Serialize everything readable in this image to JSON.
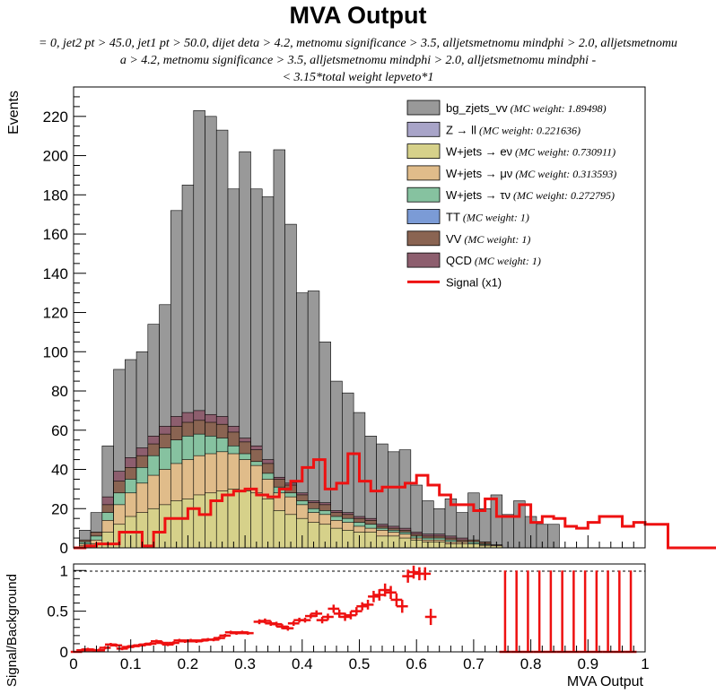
{
  "title": "MVA Output",
  "subtitle_lines": [
    "= 0, jet2 pt > 45.0, jet1 pt > 50.0, dijet deta > 4.2, metnomu significance > 3.5, alljetsmetnomu mindphi > 2.0, alljetsmetnomu",
    "a > 4.2, metnomu significance > 3.5, alljetsmetnomu mindphi > 2.0, alljetsmetnomu mindphi -",
    "< 3.15*total weight lepveto*1"
  ],
  "colors": {
    "bg_zjets_vv": "#999999",
    "z_ll": "#a8a4c8",
    "w_enu": "#d6d18a",
    "w_munu": "#e0bc8a",
    "w_taunu": "#86c2a0",
    "tt": "#7b9bd6",
    "vv": "#8a6452",
    "qcd": "#8d5e6e",
    "signal": "#ee1111"
  },
  "legend": [
    {
      "key": "bg_zjets_vv",
      "label": "bg_zjets_vv",
      "weight": "(MC weight: 1.89498)",
      "kind": "fill"
    },
    {
      "key": "z_ll",
      "label": "Z → ll",
      "weight": "(MC weight: 0.221636)",
      "kind": "fill"
    },
    {
      "key": "w_enu",
      "label": "W+jets → eν",
      "weight": "(MC weight: 0.730911)",
      "kind": "fill"
    },
    {
      "key": "w_munu",
      "label": "W+jets → μν",
      "weight": "(MC weight: 0.313593)",
      "kind": "fill"
    },
    {
      "key": "w_taunu",
      "label": "W+jets → τν",
      "weight": "(MC weight: 0.272795)",
      "kind": "fill"
    },
    {
      "key": "tt",
      "label": "TT",
      "weight": "(MC weight: 1)",
      "kind": "fill"
    },
    {
      "key": "vv",
      "label": "VV",
      "weight": "(MC weight: 1)",
      "kind": "fill"
    },
    {
      "key": "qcd",
      "label": "QCD",
      "weight": "(MC weight: 1)",
      "kind": "fill"
    },
    {
      "key": "signal",
      "label": "Signal (x1)",
      "weight": "",
      "kind": "line"
    }
  ],
  "chart_data": [
    {
      "type": "bar",
      "ylabel": "Events",
      "xlim": [
        0,
        1
      ],
      "ylim": [
        0,
        235
      ],
      "yticks": [
        0,
        20,
        40,
        60,
        80,
        100,
        120,
        140,
        160,
        180,
        200,
        220
      ],
      "bin_edges_start": 0,
      "bin_width": 0.02,
      "stack_totals": {
        "w_enu": [
          1.0,
          2.0,
          8.0,
          12.0,
          16.0,
          18.0,
          20.0,
          22.0,
          24.0,
          25.0,
          27.0,
          28.0,
          29.0,
          30.0,
          29.0,
          28.0,
          25.0,
          19.0,
          17.0,
          15.0,
          13.0,
          12.0,
          10.0,
          9.0,
          8.0,
          8.0,
          6.0,
          6.0,
          5.0,
          4.0,
          3.0,
          3.0,
          2.0,
          2.0,
          2.0,
          1.0,
          1.0
        ],
        "w_munu": [
          2.0,
          4.0,
          14.0,
          22.0,
          28.0,
          33.0,
          37.0,
          40.0,
          43.0,
          45.0,
          47.0,
          48.0,
          49.0,
          48.0,
          45.0,
          42.0,
          35.0,
          28.0,
          26.0,
          22.0,
          18.0,
          17.0,
          14.0,
          13.0,
          11.0,
          10.0,
          9.0,
          8.0,
          7.0,
          5.0,
          4.0,
          4.0,
          3.0,
          3.0,
          2.0,
          1.5,
          1.0
        ],
        "w_taunu": [
          3.0,
          6.0,
          18.0,
          28.0,
          35.0,
          41.0,
          47.0,
          51.0,
          55.0,
          57.0,
          58.0,
          57.0,
          56.0,
          52.0,
          48.0,
          44.0,
          38.0,
          31.0,
          28.0,
          24.0,
          20.0,
          19.0,
          16.0,
          15.0,
          13.0,
          12.0,
          10.0,
          9.0,
          8.0,
          6.0,
          5.0,
          5.0,
          4.0,
          3.0,
          3.0,
          2.0,
          1.0
        ],
        "vv": [
          4.0,
          8.0,
          22.0,
          34.0,
          41.0,
          47.0,
          53.0,
          58.0,
          62.0,
          64.0,
          65.0,
          64.0,
          63.0,
          59.0,
          54.0,
          50.0,
          43.0,
          35.0,
          32.0,
          27.0,
          23.0,
          22.0,
          18.0,
          17.0,
          15.0,
          14.0,
          11.0,
          10.0,
          9.0,
          7.0,
          6.0,
          6.0,
          5.0,
          4.0,
          4.0,
          3.0,
          1.5
        ],
        "qcd": [
          4.0,
          8.0,
          26.0,
          39.0,
          46.0,
          51.0,
          57.0,
          62.0,
          67.0,
          69.0,
          70.0,
          68.0,
          67.0,
          62.0,
          56.0,
          52.0,
          45.0,
          36.0,
          33.0,
          28.0,
          24.0,
          23.0,
          19.0,
          18.0,
          16.0,
          15.0,
          12.0,
          11.0,
          10.0,
          8.0,
          7.0,
          7.0,
          6.0,
          5.0,
          4.0,
          3.0,
          1.5
        ],
        "bg_zjets_vv": [
          9.0,
          18.0,
          52.0,
          91.0,
          96.0,
          100.0,
          114.0,
          124.0,
          172.0,
          185.0,
          223.0,
          220.0,
          213.0,
          183.0,
          202.0,
          183.0,
          179.0,
          203.0,
          165.0,
          130.0,
          131.0,
          105.0,
          85.0,
          79.0,
          69.0,
          57.0,
          53.0,
          49.0,
          50.0,
          32.0,
          24.0,
          20.0,
          25.0,
          18.0,
          28.0,
          20.0,
          27.0,
          17.0,
          24.0,
          16.0,
          12.0,
          12.0
        ]
      }
    },
    {
      "type": "line",
      "series": [
        {
          "name": "Signal (x1)",
          "bin_edges_start": 0,
          "bin_width": 0.02,
          "values": [
            0,
            1,
            2,
            2,
            8,
            8,
            1,
            8,
            15,
            15,
            20,
            17,
            24,
            27,
            29,
            30,
            27,
            26,
            30,
            34,
            41,
            45,
            30,
            33,
            48,
            34,
            29,
            31,
            31,
            33,
            37,
            32,
            27,
            22,
            22,
            19,
            25,
            16,
            16,
            22,
            13,
            16,
            15,
            11,
            10,
            13,
            16,
            16,
            11,
            13,
            12,
            12,
            0,
            0,
            0,
            0,
            0,
            0,
            0,
            0,
            0,
            0,
            0,
            0,
            0,
            0
          ]
        }
      ]
    },
    {
      "type": "scatter",
      "xlabel": "MVA Output",
      "ylabel": "Signal/Background",
      "xlim": [
        0,
        1
      ],
      "ylim": [
        0,
        1.08
      ],
      "xticks": [
        0,
        0.1,
        0.2,
        0.3,
        0.4,
        0.5,
        0.6,
        0.7,
        0.8,
        0.9,
        1
      ],
      "xtick_labels": [
        "0",
        "0.1",
        "0.2",
        "0.3",
        "0.4",
        "0.5",
        "0.6",
        "0.7",
        "0.8",
        "0.9",
        "1"
      ],
      "yticks": [
        0,
        0.5,
        1
      ],
      "ytick_labels": [
        "0",
        "0.5",
        "1"
      ],
      "reference_line": 1,
      "points": [
        {
          "x": 0.005,
          "y": 0.0,
          "err": 0.0
        },
        {
          "x": 0.015,
          "y": 0.02,
          "err": 0.02
        },
        {
          "x": 0.025,
          "y": 0.03,
          "err": 0.02
        },
        {
          "x": 0.035,
          "y": 0.02,
          "err": 0.02
        },
        {
          "x": 0.045,
          "y": 0.02,
          "err": 0.02
        },
        {
          "x": 0.055,
          "y": 0.05,
          "err": 0.02
        },
        {
          "x": 0.065,
          "y": 0.09,
          "err": 0.02
        },
        {
          "x": 0.075,
          "y": 0.08,
          "err": 0.02
        },
        {
          "x": 0.085,
          "y": 0.04,
          "err": 0.02
        },
        {
          "x": 0.095,
          "y": 0.06,
          "err": 0.02
        },
        {
          "x": 0.105,
          "y": 0.07,
          "err": 0.02
        },
        {
          "x": 0.115,
          "y": 0.08,
          "err": 0.02
        },
        {
          "x": 0.125,
          "y": 0.09,
          "err": 0.02
        },
        {
          "x": 0.135,
          "y": 0.1,
          "err": 0.02
        },
        {
          "x": 0.145,
          "y": 0.13,
          "err": 0.02
        },
        {
          "x": 0.155,
          "y": 0.11,
          "err": 0.02
        },
        {
          "x": 0.165,
          "y": 0.09,
          "err": 0.02
        },
        {
          "x": 0.175,
          "y": 0.11,
          "err": 0.02
        },
        {
          "x": 0.185,
          "y": 0.14,
          "err": 0.02
        },
        {
          "x": 0.195,
          "y": 0.13,
          "err": 0.02
        },
        {
          "x": 0.205,
          "y": 0.14,
          "err": 0.02
        },
        {
          "x": 0.215,
          "y": 0.13,
          "err": 0.02
        },
        {
          "x": 0.225,
          "y": 0.14,
          "err": 0.02
        },
        {
          "x": 0.235,
          "y": 0.15,
          "err": 0.02
        },
        {
          "x": 0.245,
          "y": 0.15,
          "err": 0.02
        },
        {
          "x": 0.255,
          "y": 0.17,
          "err": 0.02
        },
        {
          "x": 0.265,
          "y": 0.2,
          "err": 0.02
        },
        {
          "x": 0.275,
          "y": 0.24,
          "err": 0.02
        },
        {
          "x": 0.285,
          "y": 0.23,
          "err": 0.02
        },
        {
          "x": 0.295,
          "y": 0.24,
          "err": 0.02
        },
        {
          "x": 0.305,
          "y": 0.23,
          "err": 0.02
        },
        {
          "x": 0.325,
          "y": 0.37,
          "err": 0.03
        },
        {
          "x": 0.335,
          "y": 0.38,
          "err": 0.03
        },
        {
          "x": 0.345,
          "y": 0.35,
          "err": 0.03
        },
        {
          "x": 0.355,
          "y": 0.34,
          "err": 0.03
        },
        {
          "x": 0.365,
          "y": 0.31,
          "err": 0.03
        },
        {
          "x": 0.375,
          "y": 0.29,
          "err": 0.03
        },
        {
          "x": 0.385,
          "y": 0.35,
          "err": 0.03
        },
        {
          "x": 0.395,
          "y": 0.39,
          "err": 0.03
        },
        {
          "x": 0.405,
          "y": 0.39,
          "err": 0.03
        },
        {
          "x": 0.415,
          "y": 0.44,
          "err": 0.03
        },
        {
          "x": 0.425,
          "y": 0.47,
          "err": 0.04
        },
        {
          "x": 0.435,
          "y": 0.39,
          "err": 0.04
        },
        {
          "x": 0.445,
          "y": 0.43,
          "err": 0.04
        },
        {
          "x": 0.455,
          "y": 0.53,
          "err": 0.05
        },
        {
          "x": 0.465,
          "y": 0.47,
          "err": 0.05
        },
        {
          "x": 0.475,
          "y": 0.43,
          "err": 0.05
        },
        {
          "x": 0.485,
          "y": 0.45,
          "err": 0.05
        },
        {
          "x": 0.495,
          "y": 0.5,
          "err": 0.05
        },
        {
          "x": 0.505,
          "y": 0.56,
          "err": 0.05
        },
        {
          "x": 0.515,
          "y": 0.58,
          "err": 0.06
        },
        {
          "x": 0.525,
          "y": 0.68,
          "err": 0.07
        },
        {
          "x": 0.535,
          "y": 0.7,
          "err": 0.07
        },
        {
          "x": 0.545,
          "y": 0.76,
          "err": 0.08
        },
        {
          "x": 0.555,
          "y": 0.73,
          "err": 0.08
        },
        {
          "x": 0.565,
          "y": 0.64,
          "err": 0.08
        },
        {
          "x": 0.575,
          "y": 0.56,
          "err": 0.08
        },
        {
          "x": 0.585,
          "y": 0.93,
          "err": 0.08
        },
        {
          "x": 0.595,
          "y": 0.98,
          "err": 0.08
        },
        {
          "x": 0.605,
          "y": 0.96,
          "err": 0.08
        },
        {
          "x": 0.615,
          "y": 0.96,
          "err": 0.08
        },
        {
          "x": 0.625,
          "y": 0.43,
          "err": 0.1
        },
        {
          "x": 0.755,
          "y": 0.0,
          "err": 1.0
        },
        {
          "x": 0.775,
          "y": 0.0,
          "err": 1.0
        },
        {
          "x": 0.795,
          "y": 0.0,
          "err": 1.0
        },
        {
          "x": 0.815,
          "y": 0.0,
          "err": 1.0
        },
        {
          "x": 0.835,
          "y": 0.0,
          "err": 1.0
        },
        {
          "x": 0.855,
          "y": 0.0,
          "err": 1.0
        },
        {
          "x": 0.875,
          "y": 0.0,
          "err": 1.0
        },
        {
          "x": 0.895,
          "y": 0.0,
          "err": 1.0
        },
        {
          "x": 0.915,
          "y": 0.0,
          "err": 1.0
        },
        {
          "x": 0.935,
          "y": 0.0,
          "err": 1.0
        },
        {
          "x": 0.955,
          "y": 0.0,
          "err": 1.0
        },
        {
          "x": 0.975,
          "y": 0.0,
          "err": 1.0
        }
      ]
    }
  ]
}
